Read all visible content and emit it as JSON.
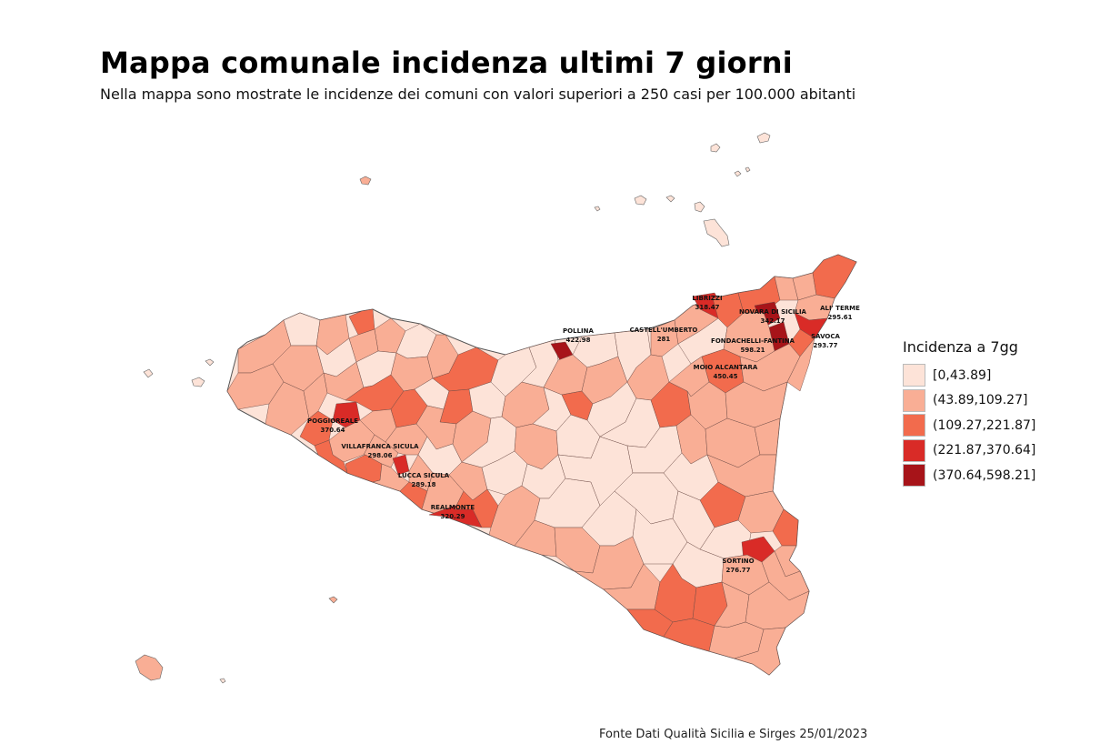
{
  "header": {
    "title": "Mappa comunale incidenza ultimi 7 giorni",
    "subtitle": "Nella mappa sono mostrate le incidenze dei comuni con valori superiori a 250 casi per 100.000 abitanti"
  },
  "legend": {
    "title": "Incidenza a 7gg",
    "items": [
      {
        "label": "[0,43.89]",
        "color": "#fde3d8"
      },
      {
        "label": "(43.89,109.27]",
        "color": "#f9ae95"
      },
      {
        "label": "(109.27,221.87]",
        "color": "#f26b4d"
      },
      {
        "label": "(221.87,370.64]",
        "color": "#d92b27"
      },
      {
        "label": "(370.64,598.21]",
        "color": "#a71419"
      }
    ]
  },
  "map_labels": [
    {
      "name": "POLLINA",
      "value": "422.98"
    },
    {
      "name": "CASTELL'UMBERTO",
      "value": "281"
    },
    {
      "name": "LIBRIZZI",
      "value": "318.47"
    },
    {
      "name": "NOVARA DI SICILIA",
      "value": "342.17"
    },
    {
      "name": "ALI' TERME",
      "value": "295.61"
    },
    {
      "name": "FONDACHELLI-FANTINA",
      "value": "598.21"
    },
    {
      "name": "SAVOCA",
      "value": "293.77"
    },
    {
      "name": "MOIO ALCANTARA",
      "value": "450.45"
    },
    {
      "name": "POGGIOREALE",
      "value": "370.64"
    },
    {
      "name": "VILLAFRANCA SICULA",
      "value": "298.06"
    },
    {
      "name": "LUCCA SICULA",
      "value": "289.18"
    },
    {
      "name": "REALMONTE",
      "value": "320.29"
    },
    {
      "name": "SORTINO",
      "value": "276.77"
    }
  ],
  "footer": {
    "source": "Fonte Dati Qualità Sicilia e Sirges 25/01/2023"
  }
}
